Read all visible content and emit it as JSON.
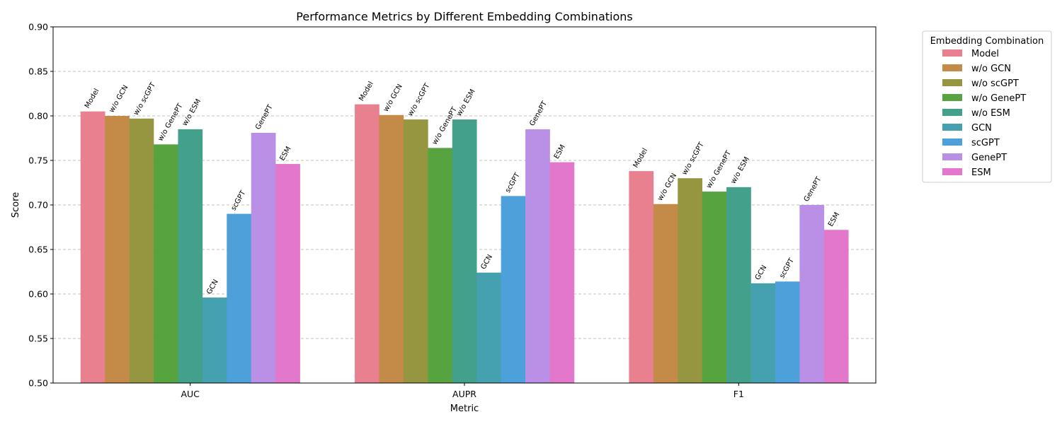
{
  "chart_data": {
    "type": "bar",
    "title": "Performance Metrics by Different Embedding Combinations",
    "xlabel": "Metric",
    "ylabel": "Score",
    "ylim": [
      0.5,
      0.9
    ],
    "yticks": [
      "0.50",
      "0.55",
      "0.60",
      "0.65",
      "0.70",
      "0.75",
      "0.80",
      "0.85",
      "0.90"
    ],
    "grid": "horizontal dashed",
    "legend_title": "Embedding Combination",
    "legend_position": "outside right",
    "categories": [
      "AUC",
      "AUPR",
      "F1"
    ],
    "series": [
      {
        "name": "Model",
        "color": "#e8808f",
        "values": [
          0.805,
          0.813,
          0.738
        ]
      },
      {
        "name": "w/o GCN",
        "color": "#c48a48",
        "values": [
          0.8,
          0.801,
          0.701
        ]
      },
      {
        "name": "w/o scGPT",
        "color": "#979640",
        "values": [
          0.797,
          0.796,
          0.73
        ]
      },
      {
        "name": "w/o GenePT",
        "color": "#56a340",
        "values": [
          0.768,
          0.764,
          0.715
        ]
      },
      {
        "name": "w/o ESM",
        "color": "#42a08b",
        "values": [
          0.785,
          0.796,
          0.72
        ]
      },
      {
        "name": "GCN",
        "color": "#45a0b0",
        "values": [
          0.596,
          0.624,
          0.612
        ]
      },
      {
        "name": "scGPT",
        "color": "#4da0da",
        "values": [
          0.69,
          0.71,
          0.614
        ]
      },
      {
        "name": "GenePT",
        "color": "#b990e5",
        "values": [
          0.781,
          0.785,
          0.7
        ]
      },
      {
        "name": "ESM",
        "color": "#e377cb",
        "values": [
          0.746,
          0.748,
          0.672
        ]
      }
    ]
  }
}
